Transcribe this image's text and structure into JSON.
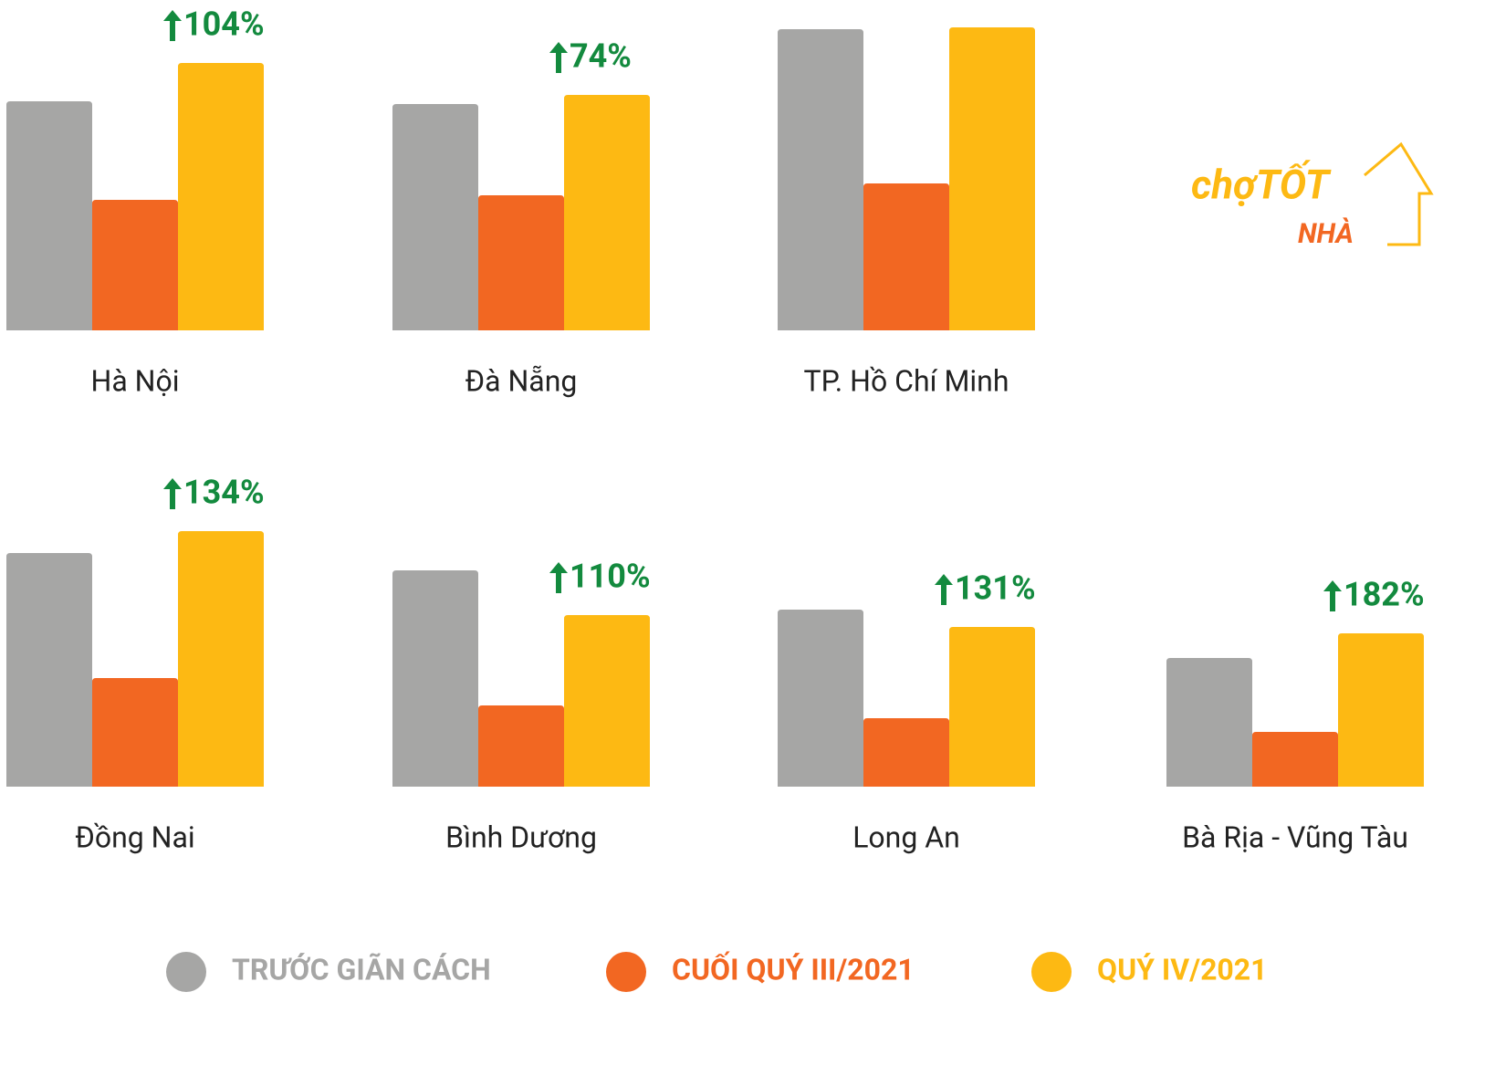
{
  "chart_data": {
    "type": "bar",
    "categories": [
      "Hà Nội",
      "Đà Nẵng",
      "TP. Hồ Chí Minh",
      "Đồng Nai",
      "Bình Dương",
      "Long An",
      "Bà Rịa - Vũng Tàu"
    ],
    "series": [
      {
        "name": "TRƯỚC GIÃN CÁCH",
        "color": "#a6a6a5",
        "values": [
          251,
          248,
          330,
          256,
          237,
          194,
          141
        ]
      },
      {
        "name": "CUỐI QUÝ III/2021",
        "color": "#f26722",
        "values": [
          143,
          148,
          161,
          119,
          89,
          75,
          60
        ]
      },
      {
        "name": "QUÝ IV/2021",
        "color": "#fdb913",
        "values": [
          293,
          258,
          332,
          280,
          188,
          175,
          168
        ]
      }
    ],
    "growth_labels": [
      "104%",
      "74%",
      null,
      "134%",
      "110%",
      "131%",
      "182%"
    ],
    "growth_color": "#138a3e",
    "ylim": [
      0,
      340
    ]
  },
  "logo": {
    "brand": "chợTỐT",
    "sub": "NHÀ"
  }
}
